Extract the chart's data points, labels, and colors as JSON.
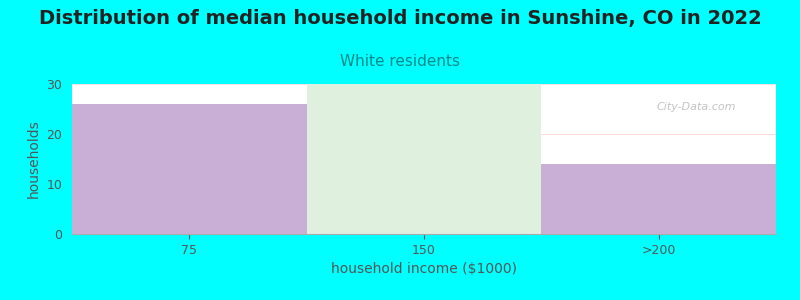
{
  "title": "Distribution of median household income in Sunshine, CO in 2022",
  "subtitle": "White residents",
  "xlabel": "household income ($1000)",
  "ylabel": "households",
  "categories": [
    "75",
    "150",
    ">200"
  ],
  "values": [
    26,
    0,
    14
  ],
  "bar_color": "#c9aed5",
  "bar_color_middle": "#dff0df",
  "ylim": [
    0,
    30
  ],
  "yticks": [
    0,
    10,
    20,
    30
  ],
  "background_color": "#00ffff",
  "plot_bg_color": "#ffffff",
  "title_fontsize": 14,
  "subtitle_fontsize": 11,
  "subtitle_color": "#008888",
  "axis_label_fontsize": 10,
  "tick_fontsize": 9,
  "watermark": "City-Data.com"
}
